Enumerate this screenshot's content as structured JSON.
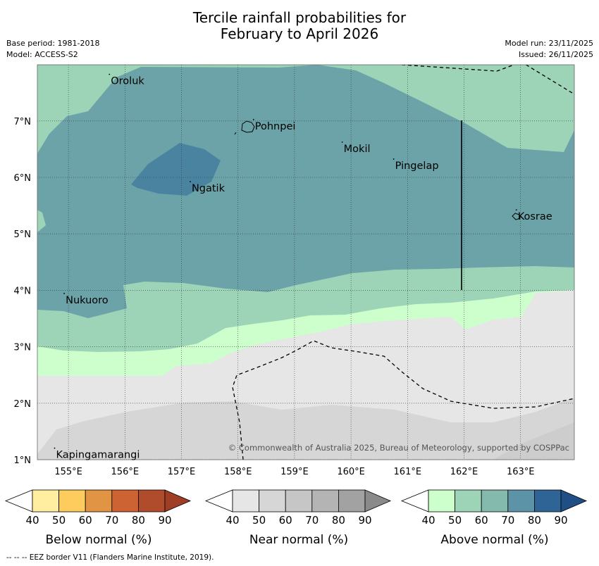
{
  "title_line1": "Tercile rainfall probabilities for",
  "title_line2": "February to April 2026",
  "meta_left": [
    "Base period: 1981-2018",
    "Model: ACCESS-S2"
  ],
  "meta_right": [
    "Model run: 23/11/2025",
    "Issued: 26/11/2025"
  ],
  "lat_labels": [
    "7°N",
    "6°N",
    "5°N",
    "4°N",
    "3°N",
    "2°N",
    "1°N"
  ],
  "lon_labels": [
    "155°E",
    "156°E",
    "157°E",
    "158°E",
    "159°E",
    "160°E",
    "161°E",
    "162°E",
    "163°E"
  ],
  "places": [
    {
      "name": "Oroluk",
      "lon": 155.75,
      "lat": 7.7
    },
    {
      "name": "Pohnpei",
      "lon": 158.3,
      "lat": 6.9
    },
    {
      "name": "Mokil",
      "lon": 159.87,
      "lat": 6.5
    },
    {
      "name": "Pingelap",
      "lon": 160.78,
      "lat": 6.2
    },
    {
      "name": "Ngatik",
      "lon": 157.18,
      "lat": 5.8
    },
    {
      "name": "Kosrae",
      "lon": 162.95,
      "lat": 5.3
    },
    {
      "name": "Nukuoro",
      "lon": 154.95,
      "lat": 3.82
    },
    {
      "name": "Kapingamarangi",
      "lon": 154.78,
      "lat": 1.08
    }
  ],
  "copyright": "© Commonwealth of Australia 2025, Bureau of Meteorology, supported by COSPPac",
  "legends": [
    {
      "label": "Below normal (%)",
      "ticks": [
        "40",
        "50",
        "60",
        "70",
        "80",
        "90"
      ],
      "colors": [
        "#ffffff",
        "#ffeda0",
        "#fecc5c",
        "#e19443",
        "#cd6232",
        "#b04c2b",
        "#a03e25"
      ]
    },
    {
      "label": "Near normal (%)",
      "ticks": [
        "40",
        "50",
        "60",
        "70",
        "80",
        "90"
      ],
      "colors": [
        "#ffffff",
        "#e6e6e6",
        "#d6d6d6",
        "#c6c6c6",
        "#b4b4b4",
        "#a2a2a2",
        "#8a8a8a"
      ]
    },
    {
      "label": "Above normal (%)",
      "ticks": [
        "40",
        "50",
        "60",
        "70",
        "80",
        "90"
      ],
      "colors": [
        "#ffffff",
        "#ccffcc",
        "#9dd4b8",
        "#84b9ad",
        "#5d93a6",
        "#2f6496",
        "#1f4f85"
      ]
    }
  ],
  "footer": "--  --  -- EEZ border V11 (Flanders Marine Institute, 2019).",
  "colors": {
    "above_50": "#9dd4b8",
    "above_60": "#84b9ad",
    "above_70": "#6ca3a8",
    "above_80": "#4a83a0",
    "above_40": "#ccffcc",
    "near_50": "#e6e6e6",
    "near_60": "#d6d6d6"
  }
}
